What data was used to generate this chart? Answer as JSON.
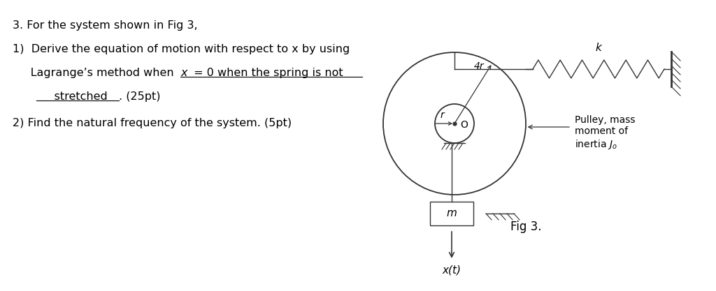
{
  "bg_color": "#ffffff",
  "text_color": "#000000",
  "line_color": "#333333",
  "title": "3. For the system shown in Fig 3,",
  "line1": "1)  Derive the equation of motion with respect to x by using",
  "line2_a": "     Lagrange’s method when ",
  "line2_b": "x",
  "line2_c": " = 0 when the spring is not",
  "line3_a": "     stretched",
  "line3_b": ". (25pt)",
  "line4": "2) Find the natural frequency of the system. (5pt)",
  "fig_label": "Fig 3.",
  "spring_label": "k",
  "mass_label": "m",
  "pulley_label": "Pulley, mass\nmoment of\ninertia $J_o$",
  "outer_radius_label": "4r",
  "inner_radius_label": "r",
  "center_label": "O",
  "xt_label": "x(t)"
}
